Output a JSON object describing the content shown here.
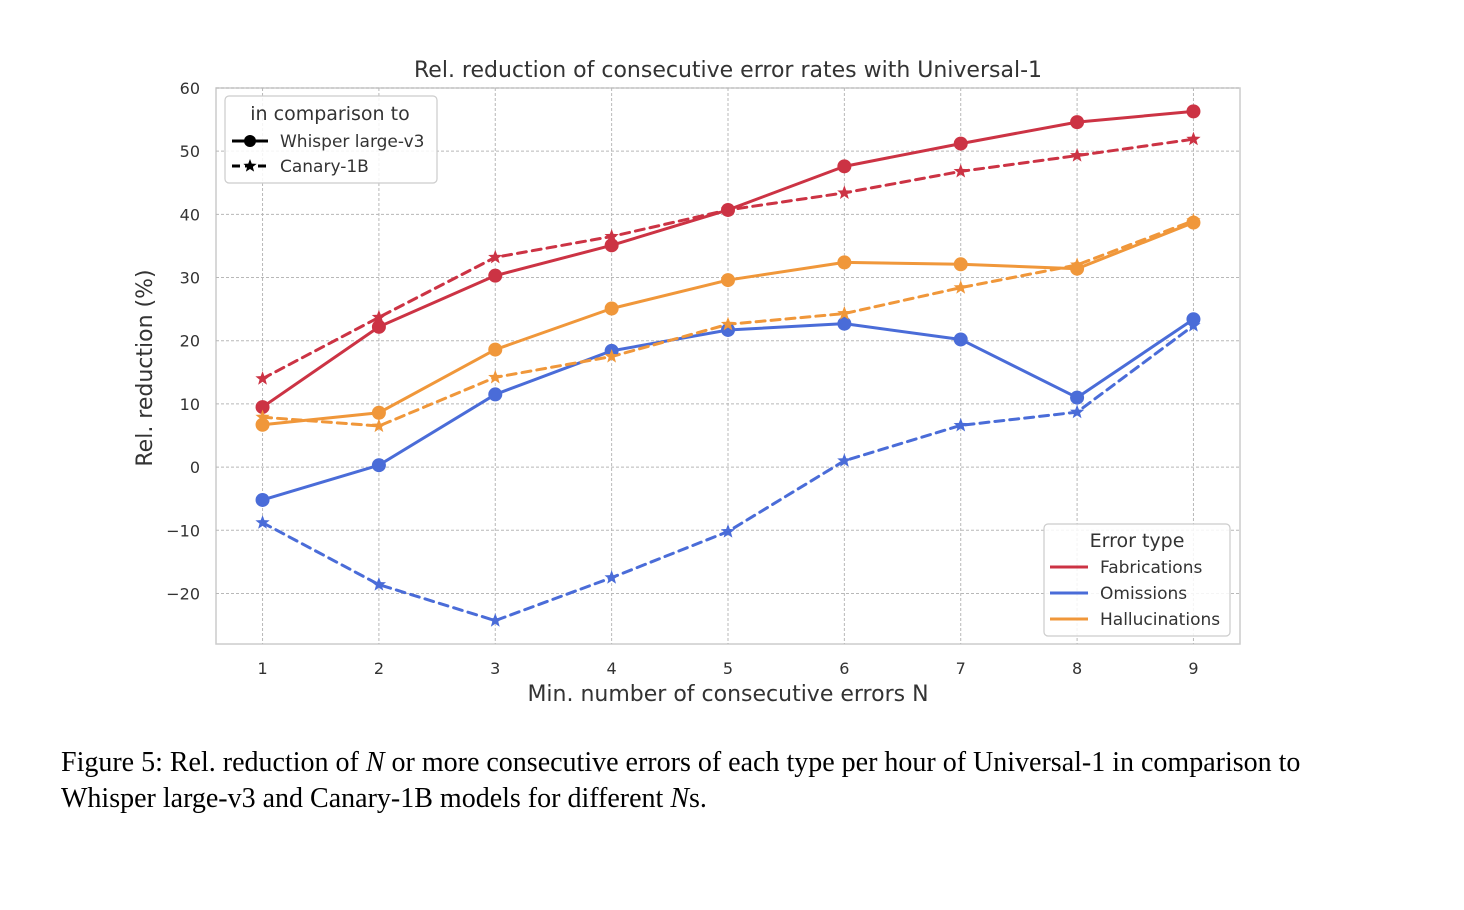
{
  "chart_data": {
    "type": "line",
    "title": "Rel. reduction of consecutive error rates with Universal-1",
    "xlabel": "Min. number of consecutive errors N",
    "ylabel": "Rel. reduction (%)",
    "x": [
      1,
      2,
      3,
      4,
      5,
      6,
      7,
      8,
      9
    ],
    "xlim": [
      0.6,
      9.4
    ],
    "ylim": [
      -28,
      60
    ],
    "yticks": [
      -20,
      -10,
      0,
      10,
      20,
      30,
      40,
      50,
      60
    ],
    "ytick_labels": [
      "−20",
      "−10",
      "0",
      "10",
      "20",
      "30",
      "40",
      "50",
      "60"
    ],
    "xticks": [
      1,
      2,
      3,
      4,
      5,
      6,
      7,
      8,
      9
    ],
    "xtick_labels": [
      "1",
      "2",
      "3",
      "4",
      "5",
      "6",
      "7",
      "8",
      "9"
    ],
    "grid": true,
    "colors": {
      "Fabrications": "#cc3344",
      "Omissions": "#4a6cd8",
      "Hallucinations": "#f0973a"
    },
    "series": [
      {
        "error_type": "Fabrications",
        "comparison": "Whisper large-v3",
        "marker": "circle",
        "style": "solid",
        "values": [
          9.5,
          22.2,
          30.3,
          35.1,
          40.7,
          47.6,
          51.2,
          54.6,
          56.3
        ]
      },
      {
        "error_type": "Fabrications",
        "comparison": "Canary-1B",
        "marker": "star",
        "style": "dashed",
        "values": [
          14.0,
          23.7,
          33.2,
          36.5,
          40.7,
          43.4,
          46.8,
          49.3,
          51.9
        ]
      },
      {
        "error_type": "Omissions",
        "comparison": "Whisper large-v3",
        "marker": "circle",
        "style": "solid",
        "values": [
          -5.2,
          0.3,
          11.5,
          18.4,
          21.7,
          22.7,
          20.2,
          11.0,
          23.4
        ]
      },
      {
        "error_type": "Omissions",
        "comparison": "Canary-1B",
        "marker": "star",
        "style": "dashed",
        "values": [
          -8.8,
          -18.6,
          -24.3,
          -17.5,
          -10.2,
          1.0,
          6.6,
          8.7,
          22.4
        ]
      },
      {
        "error_type": "Hallucinations",
        "comparison": "Whisper large-v3",
        "marker": "circle",
        "style": "solid",
        "values": [
          6.7,
          8.6,
          18.6,
          25.1,
          29.6,
          32.4,
          32.1,
          31.4,
          38.7
        ]
      },
      {
        "error_type": "Hallucinations",
        "comparison": "Canary-1B",
        "marker": "star",
        "style": "dashed",
        "values": [
          7.9,
          6.5,
          14.2,
          17.5,
          22.6,
          24.3,
          28.4,
          32.0,
          39.0
        ]
      }
    ],
    "legend_comparison": {
      "title": "in comparison to",
      "placement": "top-left",
      "entries": [
        "Whisper large-v3",
        "Canary-1B"
      ]
    },
    "legend_error_type": {
      "title": "Error type",
      "placement": "bottom-right",
      "entries": [
        "Fabrications",
        "Omissions",
        "Hallucinations"
      ]
    }
  },
  "caption": {
    "part1": "Figure 5: Rel.  reduction of ",
    "var1": "N",
    "part2": " or more consecutive errors of each type per hour of Universal-1 in comparison to Whisper large-v3 and Canary-1B models for different ",
    "var2": "N",
    "part3": "s."
  }
}
